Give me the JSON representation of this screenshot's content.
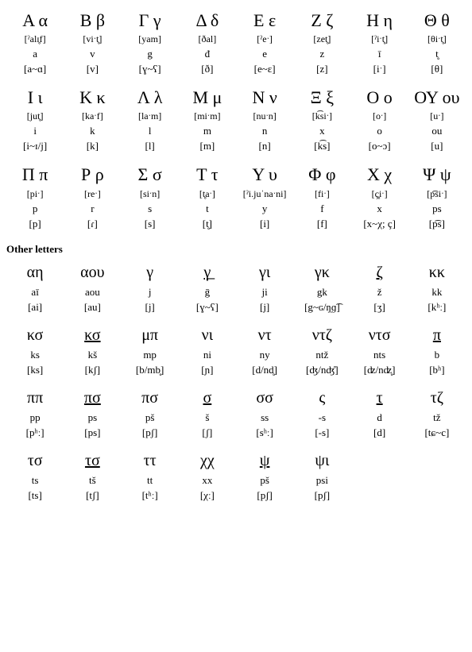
{
  "main": [
    [
      {
        "glyph": "Α α",
        "name": "[ˀalɪ̥f]",
        "tr": "a",
        "ph": "[a~ɑ]"
      },
      {
        "glyph": "Β β",
        "name": "[viˑt̥]",
        "tr": "v",
        "ph": "[v]"
      },
      {
        "glyph": "Γ γ",
        "name": "[yam]",
        "tr": "g",
        "ph": "[ɣ~ʕ]"
      },
      {
        "glyph": "Δ δ",
        "name": "[ðal]",
        "tr": "đ",
        "ph": "[ð]"
      },
      {
        "glyph": "Ε ε",
        "name": "[ˀeˑ]",
        "tr": "e",
        "ph": "[e~ɛ]"
      },
      {
        "glyph": "Ζ ζ",
        "name": "[zet̥]",
        "tr": "z",
        "ph": "[z]"
      },
      {
        "glyph": "Η η",
        "name": "[ˀiˑt̥]",
        "tr": "ī",
        "ph": "[iˑ]"
      },
      {
        "glyph": "Θ θ",
        "name": "[θiˑt̥]",
        "tr": "t̥",
        "ph": "[θ]"
      }
    ],
    [
      {
        "glyph": "Ι ι",
        "name": "[jut̥]",
        "tr": "i",
        "ph": "[i~ɪ/j]"
      },
      {
        "glyph": "Κ κ",
        "name": "[kaˑf]",
        "tr": "k",
        "ph": "[k]"
      },
      {
        "glyph": "Λ λ",
        "name": "[laˑm]",
        "tr": "l",
        "ph": "[l]"
      },
      {
        "glyph": "Μ μ",
        "name": "[miˑm]",
        "tr": "m",
        "ph": "[m]"
      },
      {
        "glyph": "Ν ν",
        "name": "[nuˑn]",
        "tr": "n",
        "ph": "[n]"
      },
      {
        "glyph": "Ξ ξ",
        "name": "[k͡siˑ]",
        "tr": "x",
        "ph": "[k͡s]"
      },
      {
        "glyph": "Ο ο",
        "name": "[oˑ]",
        "tr": "o",
        "ph": "[o~ɔ]"
      },
      {
        "glyph": "ΟΥ ου",
        "name": "[uˑ]",
        "tr": "ou",
        "ph": "[u]"
      }
    ],
    [
      {
        "glyph": "Π π",
        "name": "[piˑ]",
        "tr": "p",
        "ph": "[p]"
      },
      {
        "glyph": "Ρ ρ",
        "name": "[reˑ]",
        "tr": "r",
        "ph": "[ɾ]"
      },
      {
        "glyph": "Σ σ",
        "name": "[siˑn]",
        "tr": "s",
        "ph": "[s]"
      },
      {
        "glyph": "Τ τ",
        "name": "[t̥aˑ]",
        "tr": "t",
        "ph": "[t̥]"
      },
      {
        "glyph": "Υ υ",
        "name": "[ˀi.juˈnaˑni]",
        "tr": "y",
        "ph": "[i]"
      },
      {
        "glyph": "Φ φ",
        "name": "[fiˑ]",
        "tr": "f",
        "ph": "[f]"
      },
      {
        "glyph": "Χ χ",
        "name": "[ç̥iˑ]",
        "tr": "x",
        "ph": "[x~χ; ç]"
      },
      {
        "glyph": "Ψ ψ",
        "name": "[p͡siˑ]",
        "tr": "ps",
        "ph": "[p͡s]"
      }
    ]
  ],
  "other_title": "Other letters",
  "other": [
    [
      {
        "glyph": "αη",
        "tr": "aī",
        "ph": "[ai]"
      },
      {
        "glyph": "αου",
        "tr": "aou",
        "ph": "[au]"
      },
      {
        "glyph": "γ",
        "tr": "j",
        "ph": "[j]"
      },
      {
        "glyph": "γ̲",
        "underline": true,
        "tr": "ḡ",
        "ph": "[ɣ~ʕ]"
      },
      {
        "glyph": "γι",
        "tr": "ji",
        "ph": "[j]"
      },
      {
        "glyph": "γκ",
        "tr": "gk",
        "ph": "[g~ɢ/ŋ̩ɡ͡]"
      },
      {
        "glyph": "ζ",
        "underline": true,
        "tr": "ž",
        "ph": "[ʒ]"
      },
      {
        "glyph": "κκ",
        "tr": "kk",
        "ph": "[kʰː]"
      }
    ],
    [
      {
        "glyph": "κσ",
        "tr": "ks",
        "ph": "[ks]"
      },
      {
        "glyph": "κσ",
        "underline": true,
        "tr": "kš",
        "ph": "[kʃ]"
      },
      {
        "glyph": "μπ",
        "tr": "mp",
        "ph": "[b/mb̥]"
      },
      {
        "glyph": "νι",
        "tr": "ni",
        "ph": "[ɲ]"
      },
      {
        "glyph": "ντ",
        "tr": "ny",
        "ph": "[d/nd̥]"
      },
      {
        "glyph": "ντζ",
        "tr": "ntž",
        "ph": "[ʤ/nʤ̊]"
      },
      {
        "glyph": "ντσ",
        "tr": "nts",
        "ph": "[ʣ/nʣ̥]"
      },
      {
        "glyph": "π",
        "underline": true,
        "tr": "b",
        "ph": "[bʰ]"
      }
    ],
    [
      {
        "glyph": "ππ",
        "tr": "pp",
        "ph": "[pʰː]"
      },
      {
        "glyph": "πσ",
        "underline": true,
        "tr": "ps",
        "ph": "[ps]"
      },
      {
        "glyph": "πσ",
        "tr": "pš",
        "ph": "[pʃ]"
      },
      {
        "glyph": "σ",
        "underline": true,
        "tr": "š",
        "ph": "[ʃ]"
      },
      {
        "glyph": "σσ",
        "tr": "ss",
        "ph": "[sʰː]"
      },
      {
        "glyph": "ς",
        "tr": "-s",
        "ph": "[-s]"
      },
      {
        "glyph": "τ",
        "underline": true,
        "tr": "d",
        "ph": "[d]"
      },
      {
        "glyph": "τζ",
        "tr": "tž",
        "ph": "[tɕ~c]"
      }
    ],
    [
      {
        "glyph": "τσ",
        "tr": "ts",
        "ph": "[ts]"
      },
      {
        "glyph": "τσ",
        "underline": true,
        "tr": "tš",
        "ph": "[tʃ]"
      },
      {
        "glyph": "ττ",
        "tr": "tt",
        "ph": "[tʰː]"
      },
      {
        "glyph": "χχ",
        "tr": "xx",
        "ph": "[χː]"
      },
      {
        "glyph": "ψ",
        "underline": true,
        "tr": "pš",
        "ph": "[pʃ]"
      },
      {
        "glyph": "ψι",
        "tr": "psi",
        "ph": "[pʃ]"
      }
    ]
  ]
}
